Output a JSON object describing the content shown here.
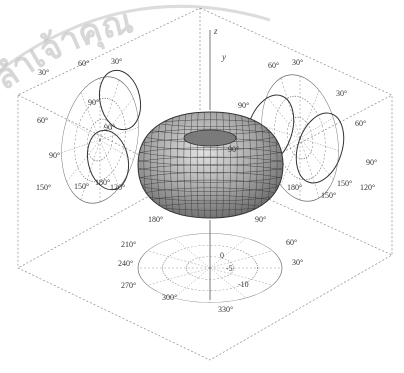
{
  "watermark": {
    "text": "ลำเจ้าคุณ",
    "color": "#9a9a9a"
  },
  "axes": {
    "z_label": "z",
    "y_label": "y"
  },
  "left_polar": {
    "labels": [
      "30°",
      "60°",
      "60°",
      "90°",
      "90°",
      "90°",
      "30°",
      "150°",
      "120°",
      "150°",
      "180°"
    ]
  },
  "right_polar": {
    "labels": [
      "60°",
      "30°",
      "30°",
      "90°",
      "60°",
      "90°",
      "90°",
      "120°",
      "150°",
      "180°",
      "150°"
    ]
  },
  "bottom_polar": {
    "labels": [
      "180°",
      "90°",
      "210°",
      "240°",
      "270°",
      "300°",
      "330°",
      "60°",
      "30°",
      "0",
      "-5",
      "-10"
    ]
  },
  "colors": {
    "lobe": "#8d8d8d",
    "lobe_highlight": "#d6d6d6",
    "lines": "#555555"
  }
}
